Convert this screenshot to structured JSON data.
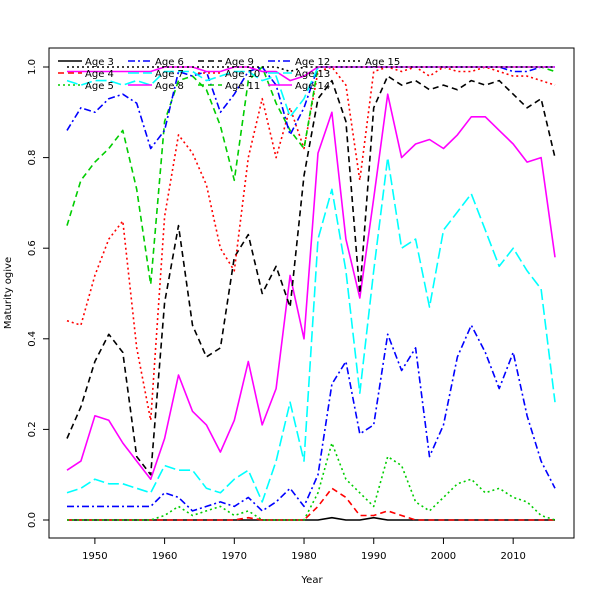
{
  "chart_data": {
    "type": "line",
    "title": "",
    "xlabel": "Year",
    "ylabel": "Maturity ogive",
    "xlim": [
      1946,
      2016
    ],
    "ylim": [
      0.0,
      1.0
    ],
    "x_ticks": [
      1950,
      1960,
      1970,
      1980,
      1990,
      2000,
      2010
    ],
    "y_ticks": [
      0.0,
      0.2,
      0.4,
      0.6,
      0.8,
      1.0
    ],
    "legend_placement": "top-left",
    "grid": false,
    "years": [
      1946,
      1948,
      1950,
      1952,
      1954,
      1956,
      1958,
      1960,
      1962,
      1964,
      1966,
      1968,
      1970,
      1972,
      1974,
      1976,
      1978,
      1980,
      1982,
      1984,
      1986,
      1988,
      1990,
      1992,
      1994,
      1996,
      1998,
      2000,
      2002,
      2004,
      2006,
      2008,
      2010,
      2012,
      2014,
      2016
    ],
    "series": [
      {
        "name": "Age 3",
        "color": "#000000",
        "dash": "solid",
        "values": [
          0,
          0,
          0,
          0,
          0,
          0,
          0,
          0,
          0,
          0,
          0,
          0,
          0,
          0,
          0,
          0,
          0,
          0,
          0,
          0.005,
          0,
          0,
          0.005,
          0,
          0,
          0,
          0,
          0,
          0,
          0,
          0,
          0,
          0,
          0,
          0,
          0
        ]
      },
      {
        "name": "Age 4",
        "color": "#ff0000",
        "dash": "dashed",
        "values": [
          0,
          0,
          0,
          0,
          0,
          0,
          0,
          0,
          0,
          0,
          0,
          0,
          0,
          0.005,
          0,
          0,
          0,
          0,
          0.03,
          0.07,
          0.05,
          0.01,
          0.01,
          0.02,
          0.01,
          0,
          0,
          0,
          0,
          0,
          0,
          0,
          0,
          0,
          0,
          0
        ]
      },
      {
        "name": "Age 5",
        "color": "#00cd00",
        "dash": "dotted",
        "values": [
          0,
          0,
          0,
          0,
          0,
          0,
          0,
          0.01,
          0.03,
          0.01,
          0.02,
          0.03,
          0.01,
          0.02,
          0,
          0,
          0,
          0,
          0.06,
          0.17,
          0.09,
          0.06,
          0.03,
          0.14,
          0.12,
          0.04,
          0.02,
          0.05,
          0.08,
          0.09,
          0.06,
          0.07,
          0.05,
          0.04,
          0.01,
          0
        ]
      },
      {
        "name": "Age 6",
        "color": "#0000ff",
        "dash": "dotdash",
        "values": [
          0.03,
          0.03,
          0.03,
          0.03,
          0.03,
          0.03,
          0.03,
          0.06,
          0.05,
          0.02,
          0.03,
          0.04,
          0.03,
          0.05,
          0.02,
          0.04,
          0.07,
          0.03,
          0.1,
          0.3,
          0.35,
          0.19,
          0.21,
          0.41,
          0.33,
          0.38,
          0.14,
          0.21,
          0.36,
          0.43,
          0.37,
          0.29,
          0.37,
          0.23,
          0.13,
          0.07
        ]
      },
      {
        "name": "Age 7",
        "color": "#00ffff",
        "dash": "longdash",
        "values": [
          0.06,
          0.07,
          0.09,
          0.08,
          0.08,
          0.07,
          0.06,
          0.12,
          0.11,
          0.11,
          0.07,
          0.06,
          0.09,
          0.11,
          0.04,
          0.13,
          0.26,
          0.13,
          0.62,
          0.73,
          0.55,
          0.28,
          0.55,
          0.8,
          0.6,
          0.62,
          0.47,
          0.64,
          0.68,
          0.72,
          0.64,
          0.56,
          0.6,
          0.55,
          0.51,
          0.26
        ]
      },
      {
        "name": "Age 8",
        "color": "#ff00ff",
        "dash": "solid",
        "values": [
          0.11,
          0.13,
          0.23,
          0.22,
          0.17,
          0.13,
          0.09,
          0.18,
          0.32,
          0.24,
          0.21,
          0.15,
          0.22,
          0.35,
          0.21,
          0.29,
          0.54,
          0.4,
          0.81,
          0.9,
          0.62,
          0.49,
          0.71,
          0.94,
          0.8,
          0.83,
          0.84,
          0.82,
          0.85,
          0.89,
          0.89,
          0.86,
          0.83,
          0.79,
          0.8,
          0.58
        ]
      },
      {
        "name": "Age 9",
        "color": "#000000",
        "dash": "dashed",
        "values": [
          0.18,
          0.25,
          0.35,
          0.41,
          0.37,
          0.14,
          0.1,
          0.48,
          0.65,
          0.43,
          0.36,
          0.38,
          0.58,
          0.63,
          0.5,
          0.56,
          0.47,
          0.76,
          0.93,
          0.97,
          0.88,
          0.5,
          0.91,
          0.98,
          0.96,
          0.97,
          0.95,
          0.96,
          0.95,
          0.97,
          0.96,
          0.97,
          0.94,
          0.91,
          0.93,
          0.8
        ]
      },
      {
        "name": "Age 10",
        "color": "#ff0000",
        "dash": "dotted",
        "values": [
          0.44,
          0.43,
          0.54,
          0.62,
          0.66,
          0.38,
          0.22,
          0.67,
          0.85,
          0.81,
          0.74,
          0.6,
          0.55,
          0.8,
          0.93,
          0.8,
          0.91,
          0.82,
          0.99,
          1.0,
          0.96,
          0.75,
          0.99,
          1.0,
          0.99,
          1.0,
          0.98,
          1.0,
          0.99,
          0.99,
          1.0,
          0.99,
          0.98,
          0.98,
          0.97,
          0.96
        ]
      },
      {
        "name": "Age 11",
        "color": "#00cd00",
        "dash": "dashed",
        "values": [
          0.65,
          0.75,
          0.79,
          0.82,
          0.86,
          0.73,
          0.52,
          0.88,
          0.97,
          0.98,
          0.95,
          0.87,
          0.75,
          0.97,
          1.0,
          0.92,
          0.86,
          0.82,
          1.0,
          1.0,
          1.0,
          1.0,
          1.0,
          1.0,
          1.0,
          1.0,
          1.0,
          1.0,
          1.0,
          1.0,
          1.0,
          1.0,
          1.0,
          1.0,
          1.0,
          0.99
        ]
      },
      {
        "name": "Age 12",
        "color": "#0000ff",
        "dash": "dotdash",
        "values": [
          0.86,
          0.91,
          0.9,
          0.93,
          0.94,
          0.92,
          0.82,
          0.86,
          0.99,
          0.98,
          0.99,
          0.9,
          0.94,
          0.99,
          1.0,
          0.96,
          0.85,
          0.91,
          1.0,
          1.0,
          1.0,
          1.0,
          1.0,
          1.0,
          1.0,
          1.0,
          1.0,
          1.0,
          1.0,
          1.0,
          1.0,
          1.0,
          0.99,
          0.99,
          1.0,
          1.0
        ]
      },
      {
        "name": "Age 13",
        "color": "#00ffff",
        "dash": "longdash",
        "values": [
          0.97,
          0.96,
          0.97,
          0.97,
          0.96,
          0.97,
          0.96,
          0.99,
          0.99,
          0.99,
          0.97,
          0.98,
          0.99,
          0.99,
          0.97,
          0.98,
          0.89,
          0.93,
          1.0,
          1.0,
          1.0,
          1.0,
          1.0,
          1.0,
          1.0,
          1.0,
          1.0,
          1.0,
          1.0,
          1.0,
          1.0,
          1.0,
          1.0,
          1.0,
          1.0,
          1.0
        ]
      },
      {
        "name": "Age 14",
        "color": "#ff00ff",
        "dash": "solid",
        "values": [
          0.99,
          0.99,
          0.99,
          0.99,
          0.99,
          0.99,
          0.99,
          1.0,
          1.0,
          1.0,
          0.99,
          0.99,
          1.0,
          1.0,
          0.99,
          0.99,
          0.97,
          0.98,
          1.0,
          1.0,
          1.0,
          1.0,
          1.0,
          1.0,
          1.0,
          1.0,
          1.0,
          1.0,
          1.0,
          1.0,
          1.0,
          1.0,
          1.0,
          1.0,
          1.0,
          1.0
        ]
      },
      {
        "name": "Age 15",
        "color": "#000000",
        "dash": "dotted",
        "values": [
          1.0,
          1.0,
          1.0,
          1.0,
          1.0,
          1.0,
          1.0,
          1.0,
          1.0,
          1.0,
          1.0,
          1.0,
          1.0,
          1.0,
          1.0,
          1.0,
          0.99,
          1.0,
          1.0,
          1.0,
          1.0,
          1.0,
          1.0,
          1.0,
          1.0,
          1.0,
          1.0,
          1.0,
          1.0,
          1.0,
          1.0,
          1.0,
          1.0,
          1.0,
          1.0,
          1.0
        ]
      }
    ]
  }
}
